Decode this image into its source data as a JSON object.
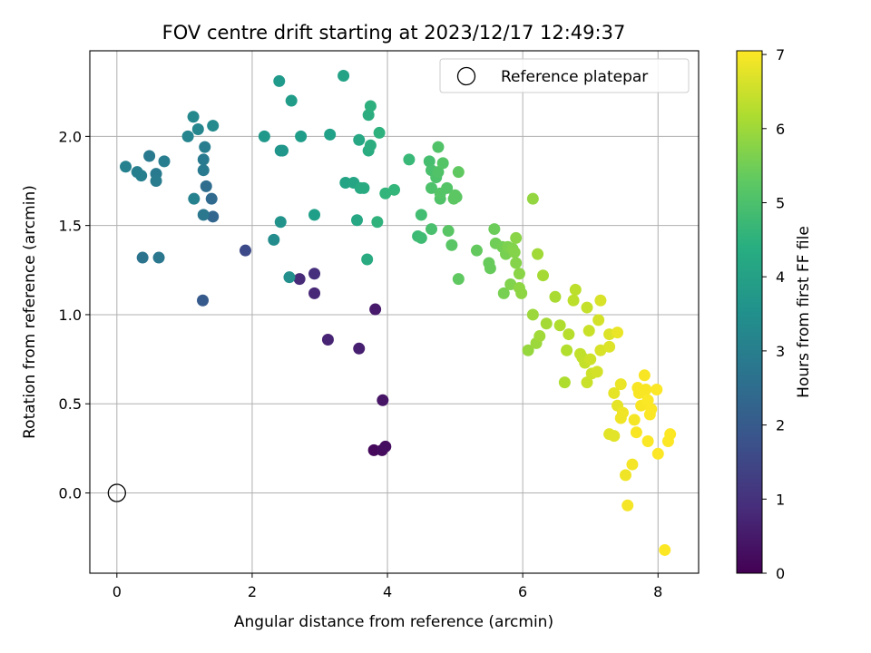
{
  "chart_data": {
    "type": "scatter",
    "title": "FOV centre drift starting at 2023/12/17 12:49:37",
    "xlabel": "Angular distance from reference (arcmin)",
    "ylabel": "Rotation from reference (arcmin)",
    "xlim": [
      -0.4,
      8.6
    ],
    "ylim": [
      -0.45,
      2.48
    ],
    "xticks": [
      0,
      2,
      4,
      6,
      8
    ],
    "yticks": [
      0.0,
      0.5,
      1.0,
      1.5,
      2.0
    ],
    "xtick_labels": [
      "0",
      "2",
      "4",
      "6",
      "8"
    ],
    "ytick_labels": [
      "0.0",
      "0.5",
      "1.0",
      "1.5",
      "2.0"
    ],
    "grid": true,
    "legend": {
      "position": "top-right",
      "entries": [
        "Reference platepar"
      ]
    },
    "reference_point": {
      "name": "Reference platepar",
      "x": 0,
      "y": 0
    },
    "colorbar": {
      "label": "Hours from first FF file",
      "min": 0,
      "max": 7.05,
      "ticks": [
        0,
        1,
        2,
        3,
        4,
        5,
        6,
        7
      ],
      "tick_labels": [
        "0",
        "1",
        "2",
        "3",
        "4",
        "5",
        "6",
        "7"
      ],
      "colormap": "viridis"
    },
    "points": [
      [
        3.8,
        0.24,
        0.15
      ],
      [
        3.92,
        0.24,
        0.2
      ],
      [
        3.97,
        0.26,
        0.25
      ],
      [
        3.93,
        0.52,
        0.4
      ],
      [
        3.82,
        1.03,
        0.5
      ],
      [
        3.58,
        0.81,
        0.6
      ],
      [
        3.12,
        0.86,
        0.7
      ],
      [
        2.92,
        1.12,
        0.8
      ],
      [
        2.7,
        1.2,
        0.85
      ],
      [
        2.92,
        1.23,
        0.95
      ],
      [
        1.9,
        1.36,
        1.6
      ],
      [
        1.27,
        1.08,
        2.0
      ],
      [
        1.42,
        1.55,
        2.3
      ],
      [
        1.4,
        1.65,
        2.4
      ],
      [
        1.32,
        1.72,
        2.5
      ],
      [
        0.38,
        1.32,
        2.7
      ],
      [
        0.62,
        1.32,
        2.8
      ],
      [
        1.28,
        1.56,
        2.8
      ],
      [
        1.28,
        1.81,
        2.9
      ],
      [
        1.28,
        1.87,
        2.9
      ],
      [
        1.3,
        1.94,
        3.0
      ],
      [
        0.48,
        1.89,
        2.9
      ],
      [
        0.58,
        1.79,
        2.9
      ],
      [
        0.58,
        1.75,
        2.95
      ],
      [
        0.7,
        1.86,
        3.0
      ],
      [
        0.3,
        1.8,
        3.05
      ],
      [
        0.36,
        1.78,
        3.05
      ],
      [
        0.13,
        1.83,
        3.1
      ],
      [
        1.14,
        1.65,
        3.1
      ],
      [
        1.05,
        2.0,
        3.2
      ],
      [
        1.2,
        2.04,
        3.25
      ],
      [
        1.13,
        2.11,
        3.3
      ],
      [
        1.42,
        2.06,
        3.35
      ],
      [
        2.32,
        1.42,
        3.4
      ],
      [
        2.55,
        1.21,
        3.5
      ],
      [
        2.42,
        1.52,
        3.6
      ],
      [
        2.42,
        1.92,
        3.65
      ],
      [
        2.45,
        1.92,
        3.7
      ],
      [
        2.18,
        2.0,
        3.75
      ],
      [
        2.4,
        2.31,
        3.8
      ],
      [
        2.58,
        2.2,
        3.85
      ],
      [
        2.72,
        2.0,
        3.9
      ],
      [
        2.92,
        1.56,
        3.95
      ],
      [
        3.15,
        2.01,
        4.0
      ],
      [
        3.35,
        2.34,
        4.05
      ],
      [
        3.38,
        1.74,
        4.1
      ],
      [
        3.5,
        1.74,
        4.15
      ],
      [
        3.58,
        1.98,
        4.2
      ],
      [
        3.55,
        1.53,
        4.2
      ],
      [
        3.6,
        1.71,
        4.25
      ],
      [
        3.65,
        1.71,
        4.3
      ],
      [
        3.7,
        1.31,
        4.3
      ],
      [
        3.72,
        1.92,
        4.35
      ],
      [
        3.75,
        1.95,
        4.4
      ],
      [
        3.72,
        2.12,
        4.4
      ],
      [
        3.75,
        2.17,
        4.45
      ],
      [
        3.88,
        2.02,
        4.5
      ],
      [
        3.85,
        1.52,
        4.55
      ],
      [
        3.97,
        1.68,
        4.6
      ],
      [
        4.1,
        1.7,
        4.65
      ],
      [
        4.32,
        1.87,
        4.75
      ],
      [
        4.45,
        1.44,
        4.8
      ],
      [
        4.5,
        1.43,
        4.85
      ],
      [
        4.5,
        1.56,
        4.9
      ],
      [
        4.62,
        1.86,
        4.95
      ],
      [
        4.65,
        1.81,
        5.0
      ],
      [
        4.65,
        1.48,
        5.0
      ],
      [
        4.65,
        1.71,
        5.05
      ],
      [
        4.72,
        1.77,
        5.05
      ],
      [
        4.75,
        1.8,
        5.1
      ],
      [
        4.75,
        1.94,
        5.1
      ],
      [
        4.78,
        1.65,
        5.1
      ],
      [
        4.78,
        1.68,
        5.15
      ],
      [
        4.82,
        1.85,
        5.15
      ],
      [
        4.88,
        1.71,
        5.15
      ],
      [
        4.9,
        1.47,
        5.2
      ],
      [
        4.95,
        1.39,
        5.2
      ],
      [
        4.98,
        1.65,
        5.25
      ],
      [
        5.0,
        1.67,
        5.25
      ],
      [
        5.02,
        1.66,
        5.25
      ],
      [
        5.05,
        1.2,
        5.3
      ],
      [
        5.05,
        1.8,
        5.3
      ],
      [
        5.32,
        1.36,
        5.35
      ],
      [
        5.5,
        1.29,
        5.4
      ],
      [
        5.52,
        1.26,
        5.4
      ],
      [
        5.58,
        1.48,
        5.45
      ],
      [
        5.6,
        1.4,
        5.5
      ],
      [
        5.7,
        1.38,
        5.55
      ],
      [
        5.72,
        1.12,
        5.6
      ],
      [
        5.75,
        1.34,
        5.6
      ],
      [
        5.78,
        1.38,
        5.65
      ],
      [
        5.82,
        1.17,
        5.7
      ],
      [
        5.85,
        1.37,
        5.7
      ],
      [
        5.88,
        1.35,
        5.75
      ],
      [
        5.9,
        1.29,
        5.75
      ],
      [
        5.9,
        1.43,
        5.8
      ],
      [
        5.95,
        1.23,
        5.8
      ],
      [
        5.95,
        1.15,
        5.85
      ],
      [
        5.98,
        1.12,
        5.85
      ],
      [
        6.15,
        1.65,
        5.9
      ],
      [
        6.08,
        0.8,
        5.95
      ],
      [
        6.15,
        1.0,
        6.0
      ],
      [
        6.2,
        0.84,
        6.0
      ],
      [
        6.22,
        1.34,
        6.05
      ],
      [
        6.25,
        0.88,
        6.05
      ],
      [
        6.3,
        1.22,
        6.1
      ],
      [
        6.35,
        0.95,
        6.1
      ],
      [
        6.48,
        1.1,
        6.15
      ],
      [
        6.55,
        0.94,
        6.2
      ],
      [
        6.62,
        0.62,
        6.2
      ],
      [
        6.65,
        0.8,
        6.25
      ],
      [
        6.68,
        0.89,
        6.3
      ],
      [
        6.75,
        1.08,
        6.35
      ],
      [
        6.78,
        1.14,
        6.35
      ],
      [
        6.85,
        0.78,
        6.4
      ],
      [
        6.88,
        0.76,
        6.4
      ],
      [
        6.92,
        0.73,
        6.45
      ],
      [
        6.95,
        1.04,
        6.45
      ],
      [
        6.95,
        0.62,
        6.5
      ],
      [
        6.98,
        0.91,
        6.5
      ],
      [
        7.0,
        0.75,
        6.55
      ],
      [
        7.02,
        0.67,
        6.55
      ],
      [
        7.1,
        0.68,
        6.6
      ],
      [
        7.12,
        0.97,
        6.6
      ],
      [
        7.15,
        0.8,
        6.65
      ],
      [
        7.15,
        1.08,
        6.65
      ],
      [
        7.28,
        0.89,
        6.7
      ],
      [
        7.28,
        0.82,
        6.7
      ],
      [
        7.28,
        0.33,
        6.75
      ],
      [
        7.35,
        0.32,
        6.75
      ],
      [
        7.35,
        0.56,
        6.8
      ],
      [
        7.4,
        0.49,
        6.8
      ],
      [
        7.4,
        0.9,
        6.85
      ],
      [
        7.45,
        0.61,
        6.85
      ],
      [
        7.45,
        0.42,
        6.9
      ],
      [
        7.48,
        0.45,
        6.9
      ],
      [
        7.52,
        0.1,
        6.9
      ],
      [
        7.55,
        -0.07,
        6.95
      ],
      [
        7.62,
        0.16,
        6.95
      ],
      [
        7.65,
        0.41,
        6.95
      ],
      [
        7.68,
        0.34,
        7.0
      ],
      [
        7.7,
        0.59,
        7.0
      ],
      [
        7.72,
        0.56,
        7.0
      ],
      [
        7.75,
        0.49,
        7.0
      ],
      [
        7.8,
        0.66,
        7.0
      ],
      [
        7.82,
        0.58,
        7.0
      ],
      [
        7.85,
        0.52,
        7.02
      ],
      [
        7.85,
        0.29,
        7.02
      ],
      [
        7.88,
        0.44,
        7.02
      ],
      [
        7.9,
        0.47,
        7.03
      ],
      [
        7.98,
        0.58,
        7.03
      ],
      [
        8.0,
        0.22,
        7.03
      ],
      [
        8.1,
        -0.32,
        7.04
      ],
      [
        8.15,
        0.29,
        7.04
      ],
      [
        8.18,
        0.33,
        7.04
      ]
    ]
  }
}
